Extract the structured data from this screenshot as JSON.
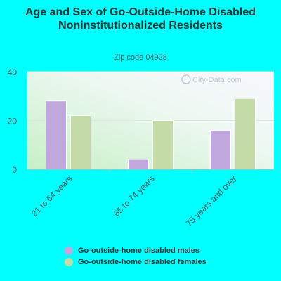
{
  "chart_data": {
    "type": "bar",
    "title": "Age and Sex of Go-Outside-Home Disabled Noninstitutionalized Residents",
    "subtitle": "Zip code 04928",
    "categories": [
      "21 to 64 years",
      "65 to 74 years",
      "75 years and over"
    ],
    "series": [
      {
        "name": "Go-outside-home disabled males",
        "values": [
          28,
          4,
          16
        ],
        "color": "#c0a8dc"
      },
      {
        "name": "Go-outside-home disabled females",
        "values": [
          22,
          20,
          29
        ],
        "color": "#c4dba8"
      }
    ],
    "ylim": [
      0,
      40
    ],
    "yticks": [
      0,
      20,
      40
    ],
    "grid": true,
    "legend": "bottom",
    "watermark": "City-Data.com"
  }
}
